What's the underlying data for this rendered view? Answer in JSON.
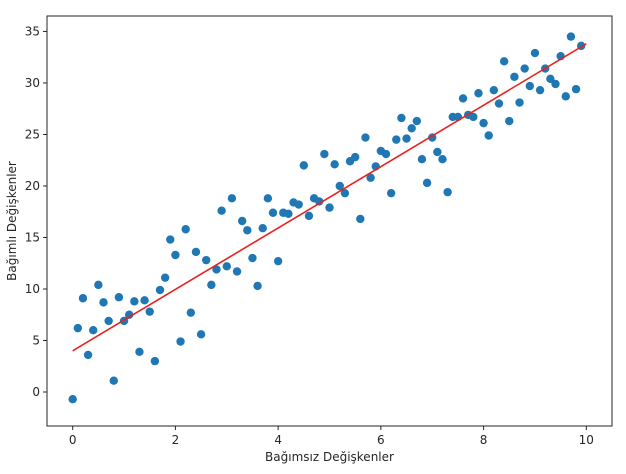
{
  "chart_data": {
    "type": "scatter",
    "title": "",
    "xlabel": "Bağımsız Değişkenler",
    "ylabel": "Bağımlı Değişkenler",
    "xlim": [
      -0.5,
      10.5
    ],
    "ylim": [
      -3.3,
      36.5
    ],
    "xticks": [
      0,
      2,
      4,
      6,
      8,
      10
    ],
    "yticks": [
      0,
      5,
      10,
      15,
      20,
      25,
      30,
      35
    ],
    "grid": false,
    "legend": "none",
    "colors": {
      "points": "#1f77b4",
      "fit_line": "#e8231e",
      "axis": "#262626"
    },
    "series": [
      {
        "kind": "points",
        "x": [
          0.0,
          0.1,
          0.2,
          0.3,
          0.4,
          0.5,
          0.6,
          0.7,
          0.8,
          0.9,
          1.0,
          1.1,
          1.2,
          1.3,
          1.4,
          1.5,
          1.6,
          1.7,
          1.8,
          1.9,
          2.0,
          2.1,
          2.2,
          2.3,
          2.4,
          2.5,
          2.6,
          2.7,
          2.8,
          2.9,
          3.0,
          3.1,
          3.2,
          3.3,
          3.4,
          3.5,
          3.6,
          3.7,
          3.8,
          3.9,
          4.0,
          4.1,
          4.2,
          4.3,
          4.4,
          4.5,
          4.6,
          4.7,
          4.8,
          4.9,
          5.0,
          5.1,
          5.2,
          5.3,
          5.4,
          5.5,
          5.6,
          5.7,
          5.8,
          5.9,
          6.0,
          6.1,
          6.2,
          6.3,
          6.4,
          6.5,
          6.6,
          6.7,
          6.8,
          6.9,
          7.0,
          7.1,
          7.2,
          7.3,
          7.4,
          7.5,
          7.6,
          7.7,
          7.8,
          7.9,
          8.0,
          8.1,
          8.2,
          8.3,
          8.4,
          8.5,
          8.6,
          8.7,
          8.8,
          8.9,
          9.0,
          9.1,
          9.2,
          9.3,
          9.4,
          9.5,
          9.6,
          9.7,
          9.8,
          9.9
        ],
        "y": [
          -0.7,
          6.2,
          9.1,
          3.6,
          6.0,
          10.4,
          8.7,
          6.9,
          1.1,
          9.2,
          6.9,
          7.5,
          8.8,
          3.9,
          8.9,
          7.8,
          3.0,
          9.9,
          11.1,
          14.8,
          13.3,
          4.9,
          15.8,
          7.7,
          13.6,
          5.6,
          12.8,
          10.4,
          11.9,
          17.6,
          12.2,
          18.8,
          11.7,
          16.6,
          15.7,
          13.0,
          10.3,
          15.9,
          18.8,
          17.4,
          12.7,
          17.4,
          17.3,
          18.4,
          18.2,
          22.0,
          17.1,
          18.8,
          18.5,
          23.1,
          17.9,
          22.1,
          20.0,
          19.3,
          22.4,
          22.8,
          16.8,
          24.7,
          20.8,
          21.9,
          23.4,
          23.1,
          19.3,
          24.5,
          26.6,
          24.6,
          25.6,
          26.3,
          22.6,
          20.3,
          24.7,
          23.3,
          22.6,
          19.4,
          26.7,
          26.7,
          28.5,
          26.9,
          26.7,
          29.0,
          26.1,
          24.9,
          29.3,
          28.0,
          32.1,
          26.3,
          30.6,
          28.1,
          31.4,
          29.7,
          32.9,
          29.3,
          31.4,
          30.4,
          29.9,
          32.6,
          28.7,
          34.5,
          29.4,
          33.6
        ]
      },
      {
        "kind": "fit-line",
        "x": [
          0,
          10
        ],
        "y": [
          4.0,
          33.8
        ]
      }
    ]
  }
}
